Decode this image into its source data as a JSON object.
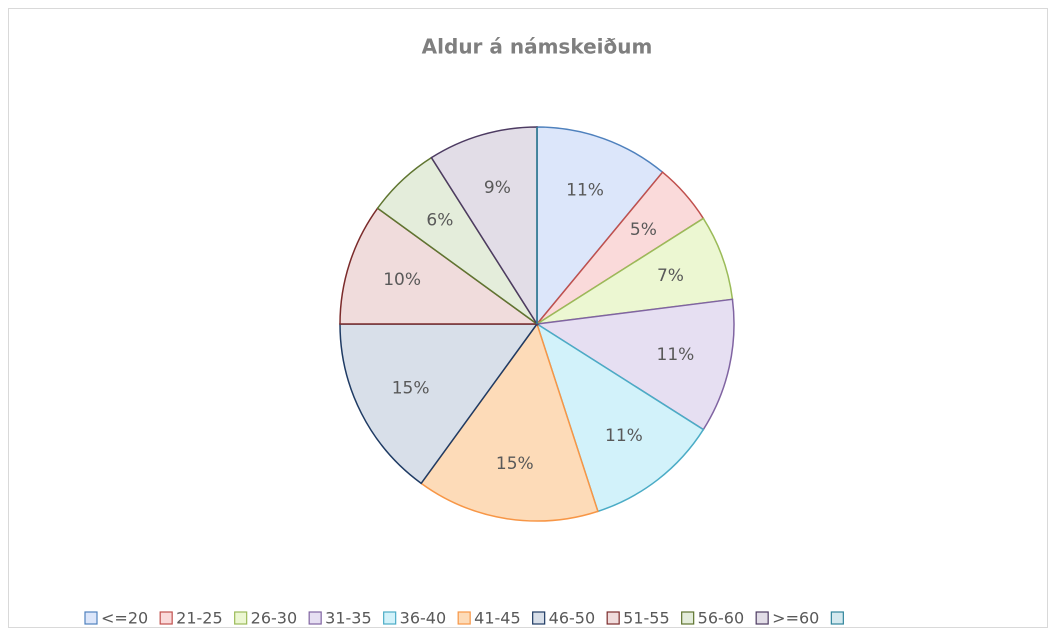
{
  "chart_data": {
    "type": "pie",
    "title": "Aldur á námskeiðum",
    "categories": [
      "<=20",
      "21-25",
      "26-30",
      "31-35",
      "36-40",
      "41-45",
      "46-50",
      "51-55",
      "56-60",
      ">=60",
      null
    ],
    "values": [
      11,
      5,
      7,
      11,
      11,
      15,
      15,
      10,
      6,
      9,
      0
    ],
    "value_labels": [
      "11%",
      "5%",
      "7%",
      "11%",
      "11%",
      "15%",
      "15%",
      "10%",
      "6%",
      "9%",
      null
    ],
    "colors": [
      "#dce6fa",
      "#fadada",
      "#ecf7d2",
      "#e6dff2",
      "#d2f2fa",
      "#fddbb8",
      "#d8dfe9",
      "#f0dcdc",
      "#e4eddb",
      "#e2dde7",
      "#d4e9ef"
    ],
    "edge_colors": [
      "#4f81bd",
      "#c0504d",
      "#9bbb59",
      "#8064a2",
      "#4bacc6",
      "#f79646",
      "#1f3b64",
      "#7b2b2b",
      "#5f7530",
      "#4d3b62",
      "#31859c"
    ],
    "legend": "bottom"
  }
}
